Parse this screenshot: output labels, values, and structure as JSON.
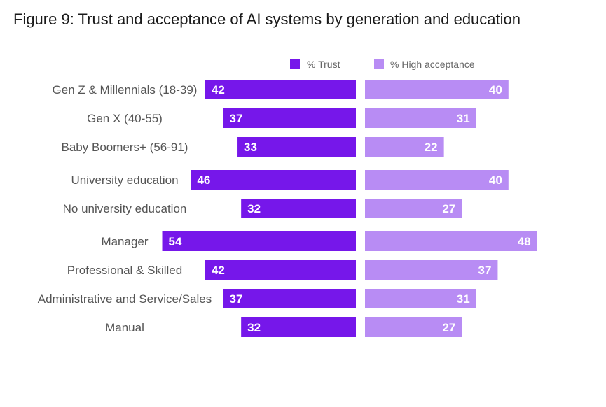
{
  "chart_data": {
    "type": "bar",
    "orientation": "horizontal-diverging",
    "title": "Figure 9: Trust and acceptance of AI systems by generation and education",
    "legend_placement": "top-right",
    "grid": false,
    "series": [
      {
        "name": "% Trust",
        "color": "#7617ea"
      },
      {
        "name": "% High acceptance",
        "color": "#b88cf4"
      }
    ],
    "groups": [
      {
        "rows": [
          {
            "label": "Gen Z & Millennials (18-39)",
            "trust": 42,
            "acceptance": 40
          },
          {
            "label": "Gen X (40-55)",
            "trust": 37,
            "acceptance": 31
          },
          {
            "label": "Baby Boomers+ (56-91)",
            "trust": 33,
            "acceptance": 22
          }
        ]
      },
      {
        "rows": [
          {
            "label": "University education",
            "trust": 46,
            "acceptance": 40
          },
          {
            "label": "No university education",
            "trust": 32,
            "acceptance": 27
          }
        ]
      },
      {
        "rows": [
          {
            "label": "Manager",
            "trust": 54,
            "acceptance": 48
          },
          {
            "label": "Professional & Skilled",
            "trust": 42,
            "acceptance": 37
          },
          {
            "label": "Administrative and Service/Sales",
            "trust": 37,
            "acceptance": 31
          },
          {
            "label": "Manual",
            "trust": 32,
            "acceptance": 27
          }
        ]
      }
    ]
  }
}
